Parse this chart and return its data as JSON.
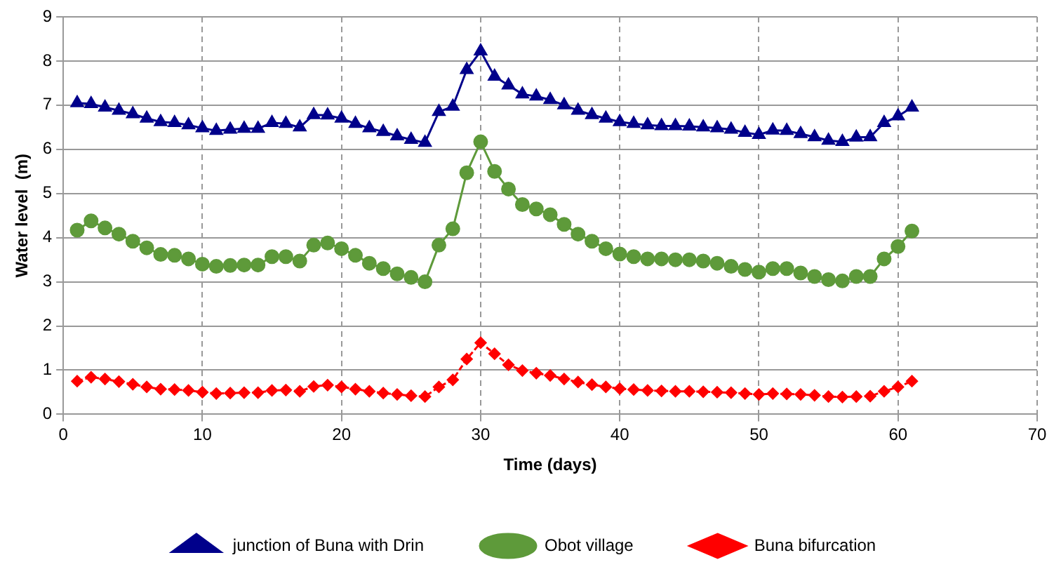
{
  "chart_data": {
    "type": "line",
    "xlabel": "Time (days)",
    "ylabel": "Water level  (m)",
    "x": [
      1,
      2,
      3,
      4,
      5,
      6,
      7,
      8,
      9,
      10,
      11,
      12,
      13,
      14,
      15,
      16,
      17,
      18,
      19,
      20,
      21,
      22,
      23,
      24,
      25,
      26,
      27,
      28,
      29,
      30,
      31,
      32,
      33,
      34,
      35,
      36,
      37,
      38,
      39,
      40,
      41,
      42,
      43,
      44,
      45,
      46,
      47,
      48,
      49,
      50,
      51,
      52,
      53,
      54,
      55,
      56,
      57,
      58,
      59,
      60,
      61
    ],
    "series": [
      {
        "name": "junction of Buna with Drin",
        "color": "#00008b",
        "marker": "triangle",
        "values": [
          7.05,
          7.03,
          6.95,
          6.88,
          6.8,
          6.7,
          6.62,
          6.6,
          6.55,
          6.48,
          6.42,
          6.45,
          6.47,
          6.47,
          6.6,
          6.58,
          6.5,
          6.78,
          6.77,
          6.7,
          6.58,
          6.48,
          6.4,
          6.3,
          6.22,
          6.15,
          6.85,
          6.97,
          7.8,
          8.22,
          7.65,
          7.45,
          7.25,
          7.2,
          7.12,
          7.0,
          6.88,
          6.78,
          6.7,
          6.62,
          6.58,
          6.55,
          6.53,
          6.53,
          6.52,
          6.5,
          6.48,
          6.45,
          6.38,
          6.33,
          6.43,
          6.42,
          6.35,
          6.28,
          6.2,
          6.17,
          6.27,
          6.28,
          6.6,
          6.75,
          6.95
        ]
      },
      {
        "name": "Obot village",
        "color": "#5e9a3a",
        "marker": "circle",
        "values": [
          4.17,
          4.38,
          4.22,
          4.08,
          3.92,
          3.77,
          3.62,
          3.6,
          3.52,
          3.4,
          3.35,
          3.37,
          3.38,
          3.38,
          3.57,
          3.57,
          3.47,
          3.83,
          3.88,
          3.75,
          3.6,
          3.42,
          3.3,
          3.18,
          3.1,
          3.0,
          3.83,
          4.2,
          5.47,
          6.17,
          5.5,
          5.1,
          4.75,
          4.65,
          4.52,
          4.3,
          4.08,
          3.92,
          3.75,
          3.63,
          3.57,
          3.52,
          3.52,
          3.5,
          3.5,
          3.47,
          3.42,
          3.35,
          3.28,
          3.22,
          3.3,
          3.3,
          3.2,
          3.12,
          3.05,
          3.02,
          3.12,
          3.12,
          3.52,
          3.8,
          4.15
        ]
      },
      {
        "name": "Buna bifurcation",
        "color": "#ff0000",
        "marker": "diamond",
        "line_style": "dashed",
        "values": [
          0.75,
          0.84,
          0.8,
          0.74,
          0.68,
          0.62,
          0.57,
          0.56,
          0.54,
          0.5,
          0.47,
          0.48,
          0.49,
          0.49,
          0.54,
          0.55,
          0.52,
          0.63,
          0.66,
          0.62,
          0.57,
          0.52,
          0.48,
          0.45,
          0.42,
          0.4,
          0.62,
          0.78,
          1.25,
          1.62,
          1.37,
          1.12,
          0.99,
          0.93,
          0.88,
          0.8,
          0.73,
          0.67,
          0.62,
          0.58,
          0.56,
          0.54,
          0.53,
          0.52,
          0.52,
          0.51,
          0.5,
          0.49,
          0.47,
          0.45,
          0.47,
          0.46,
          0.45,
          0.43,
          0.4,
          0.39,
          0.4,
          0.41,
          0.52,
          0.62,
          0.75
        ]
      }
    ],
    "xlim": [
      0,
      70
    ],
    "xticks": [
      0,
      10,
      20,
      30,
      40,
      50,
      60,
      70
    ],
    "ylim": [
      0,
      9
    ],
    "yticks": [
      0,
      1,
      2,
      3,
      4,
      5,
      6,
      7,
      8,
      9
    ],
    "grid": true,
    "legend": "bottom"
  }
}
